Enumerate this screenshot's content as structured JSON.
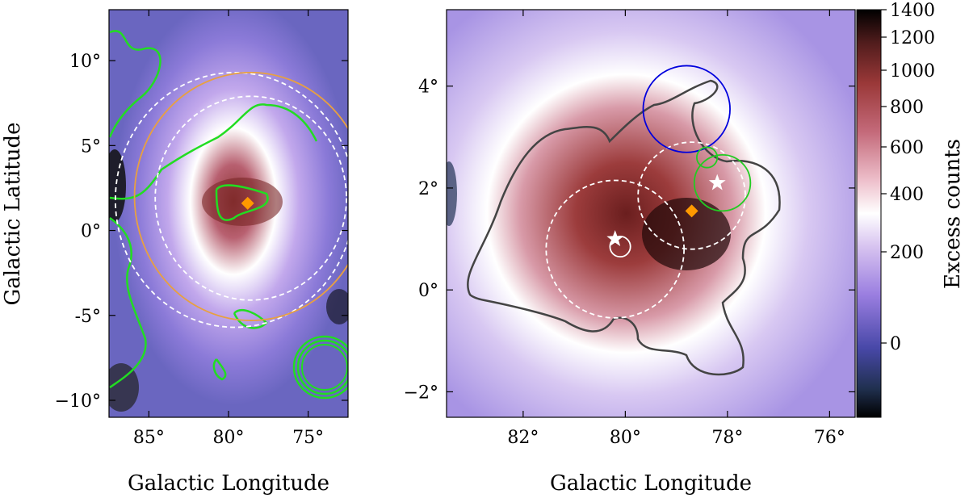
{
  "chart_data": [
    {
      "type": "heatmap",
      "title": "",
      "xlabel": "Galactic Longitude",
      "ylabel": "Galactic Latitude",
      "xlim": [
        87.5,
        72.5
      ],
      "ylim": [
        -11,
        13
      ],
      "x_ticks": [
        {
          "value": 85,
          "label": "85°"
        },
        {
          "value": 80,
          "label": "80°"
        },
        {
          "value": 75,
          "label": "75°"
        }
      ],
      "y_ticks": [
        {
          "value": 10,
          "label": "10°"
        },
        {
          "value": 5,
          "label": "5°"
        },
        {
          "value": 0,
          "label": "0°"
        },
        {
          "value": -5,
          "label": "-5°"
        },
        {
          "value": -10,
          "label": "−10°"
        }
      ],
      "markers": [
        {
          "name": "diamond",
          "l": 78.8,
          "b": 1.6,
          "color": "#ff9900"
        }
      ],
      "circles": [
        {
          "name": "white-dashed-large",
          "l": 79.6,
          "b": 1.8,
          "r": 7.5,
          "color": "#ffffff",
          "dashed": true
        },
        {
          "name": "white-dashed-inner",
          "l": 78.6,
          "b": 1.9,
          "r": 6.0,
          "color": "#ffffff",
          "dashed": true
        },
        {
          "name": "orange-circle",
          "l": 78.6,
          "b": 2.0,
          "r": 7.3,
          "color": "#e8a040",
          "dashed": false
        }
      ],
      "colors": {
        "contour": "#22dd22"
      }
    },
    {
      "type": "heatmap",
      "title": "",
      "xlabel": "Galactic Longitude",
      "ylabel": "",
      "xlim": [
        83.5,
        75.5
      ],
      "ylim": [
        -2.5,
        5.5
      ],
      "x_ticks": [
        {
          "value": 82,
          "label": "82°"
        },
        {
          "value": 80,
          "label": "80°"
        },
        {
          "value": 78,
          "label": "78°"
        },
        {
          "value": 76,
          "label": "76°"
        }
      ],
      "y_ticks": [
        {
          "value": 4,
          "label": "4°"
        },
        {
          "value": 2,
          "label": "2°"
        },
        {
          "value": 0,
          "label": "0°"
        },
        {
          "value": -2,
          "label": "−2°"
        }
      ],
      "markers": [
        {
          "name": "star",
          "l": 80.2,
          "b": 1.0,
          "color": "#ffffff"
        },
        {
          "name": "star",
          "l": 78.2,
          "b": 2.1,
          "color": "#ffffff"
        },
        {
          "name": "diamond",
          "l": 78.7,
          "b": 1.55,
          "color": "#ff9900"
        }
      ],
      "circles": [
        {
          "name": "white-dashed-left",
          "l": 80.2,
          "b": 0.8,
          "r": 1.35,
          "color": "#ffffff",
          "dashed": true
        },
        {
          "name": "white-dashed-right",
          "l": 78.7,
          "b": 1.85,
          "r": 1.05,
          "color": "#ffffff",
          "dashed": true
        },
        {
          "name": "white-small",
          "l": 80.1,
          "b": 0.85,
          "r": 0.2,
          "color": "#ffffff",
          "dashed": false
        },
        {
          "name": "blue-circle",
          "l": 78.8,
          "b": 3.55,
          "r": 0.85,
          "color": "#0000dd",
          "dashed": false
        },
        {
          "name": "green-large",
          "l": 78.1,
          "b": 2.1,
          "r": 0.55,
          "color": "#22cc22",
          "dashed": false
        },
        {
          "name": "green-small",
          "l": 78.4,
          "b": 2.6,
          "r": 0.2,
          "color": "#22cc22",
          "dashed": false
        }
      ],
      "colorbar": {
        "label": "Excess counts",
        "ticks": [
          {
            "value": 1400,
            "label": "1400"
          },
          {
            "value": 1200,
            "label": "1200"
          },
          {
            "value": 1000,
            "label": "1000"
          },
          {
            "value": 800,
            "label": "800"
          },
          {
            "value": 600,
            "label": "600"
          },
          {
            "value": 400,
            "label": "400"
          },
          {
            "value": 200,
            "label": "200"
          },
          {
            "value": 0,
            "label": "0"
          }
        ]
      },
      "colors": {
        "contour": "#404040"
      }
    }
  ]
}
